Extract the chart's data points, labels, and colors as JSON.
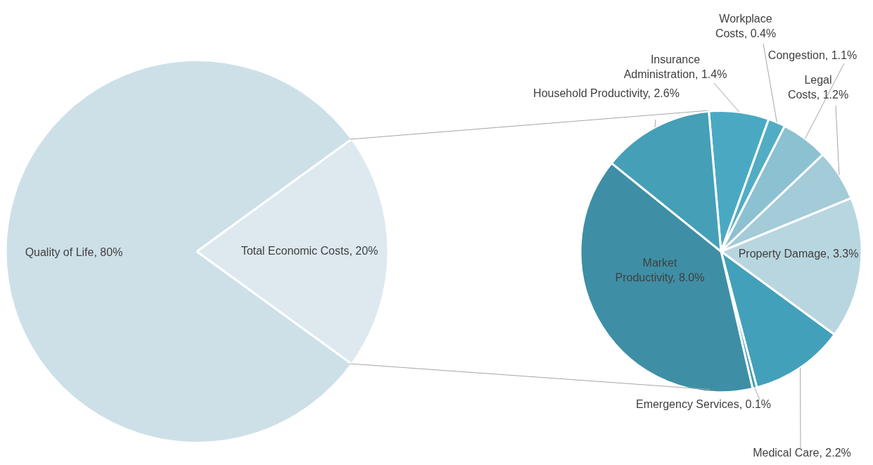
{
  "chart_data": [
    {
      "type": "pie",
      "categories": [
        "Quality of Life",
        "Total Economic Costs"
      ],
      "values": [
        80,
        20
      ],
      "colors": [
        "#cde0e8",
        "#dde9ef"
      ],
      "value_labels": [
        "80%",
        "20%"
      ]
    },
    {
      "type": "pie",
      "categories": [
        "Insurance Administration",
        "Workplace Costs",
        "Congestion",
        "Legal Costs",
        "Property Damage",
        "Medical Care",
        "Emergency Services",
        "Market Productivity",
        "Household Productivity"
      ],
      "values": [
        1.4,
        0.4,
        1.1,
        1.2,
        3.3,
        2.2,
        0.1,
        8.0,
        2.6
      ],
      "colors": [
        "#4aa9c2",
        "#52adc4",
        "#8cc1d1",
        "#a3cbd8",
        "#b8d6e0",
        "#43a0ba",
        "#3f98b0",
        "#3e8fa5",
        "#459fb7"
      ],
      "value_labels": [
        "1.4%",
        "0.4%",
        "1.1%",
        "1.2%",
        "3.3%",
        "2.2%",
        "0.1%",
        "8.0%",
        "2.6%"
      ]
    }
  ]
}
